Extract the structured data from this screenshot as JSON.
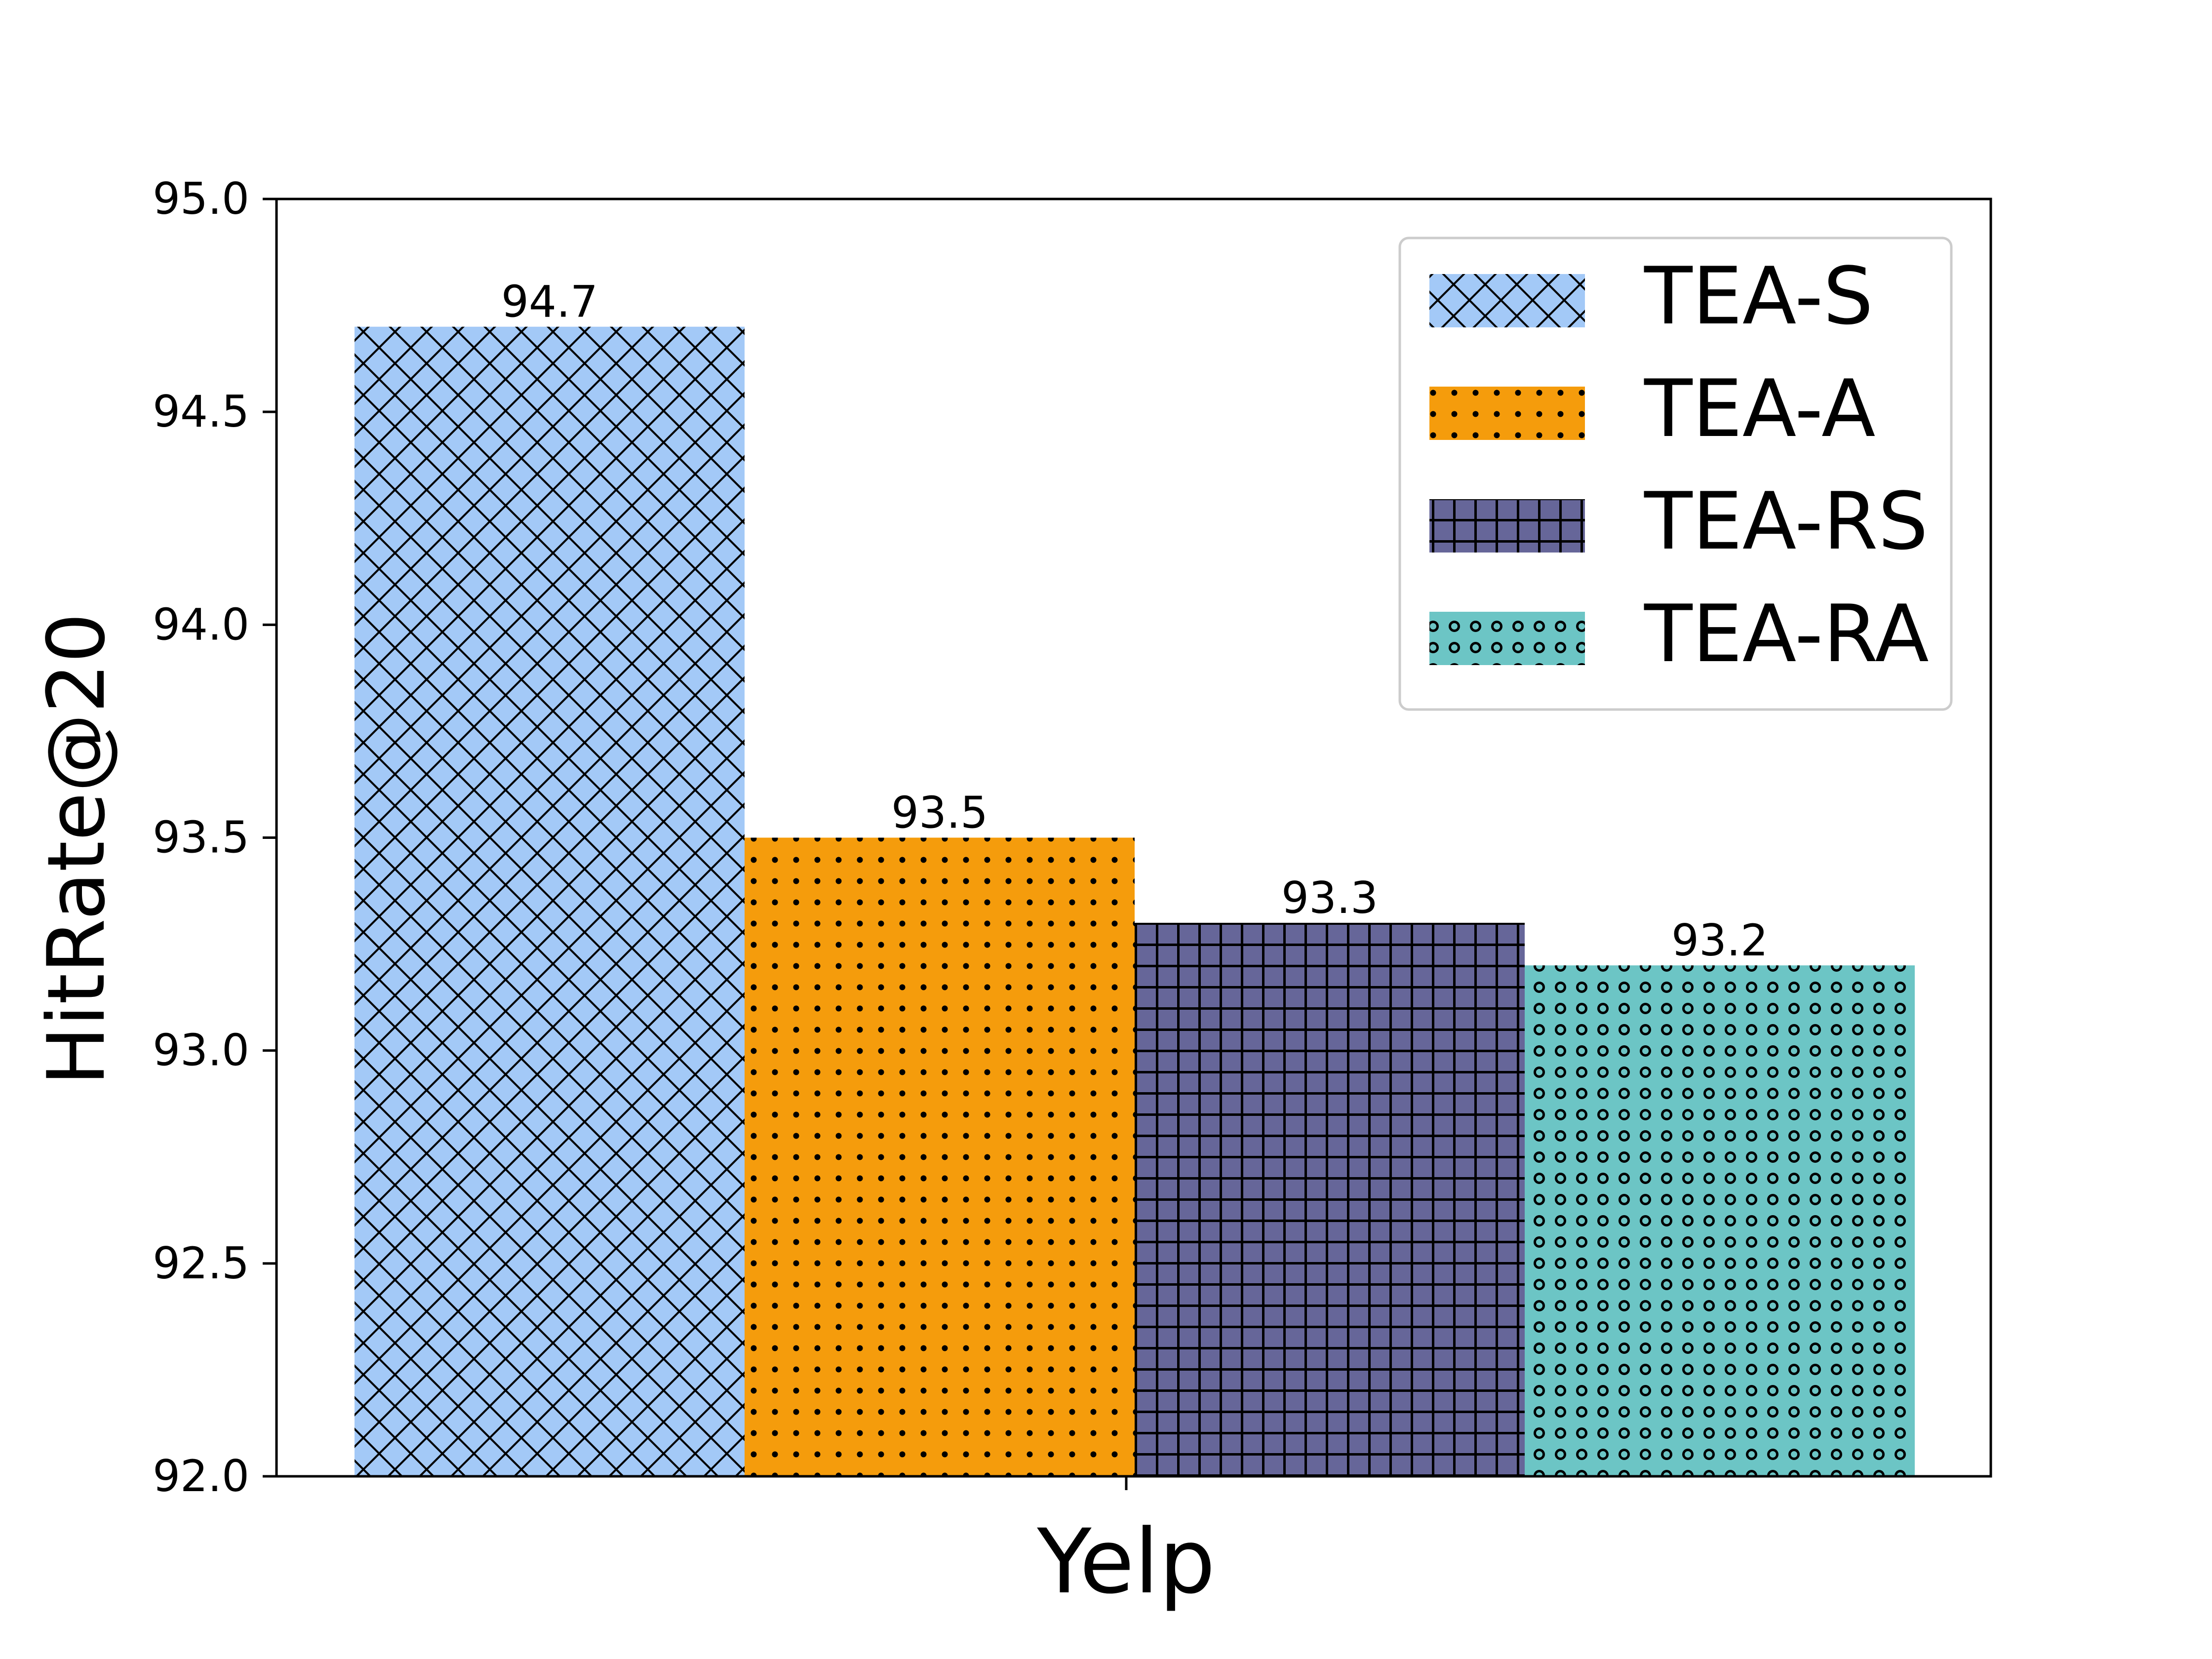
{
  "chart_data": {
    "type": "bar",
    "title": "",
    "xlabel": "",
    "ylabel": "HitRate@20",
    "categories": [
      "Yelp"
    ],
    "ylim": [
      92.0,
      95.0
    ],
    "yticks": [
      "92.0",
      "92.5",
      "93.0",
      "93.5",
      "94.0",
      "94.5",
      "95.0"
    ],
    "grid": false,
    "legend_position": "top-right",
    "series": [
      {
        "name": "TEA-S",
        "values": [
          94.7
        ],
        "value_label": "94.7",
        "color": "#a3c9f7",
        "hatch": "cross-diagonal"
      },
      {
        "name": "TEA-A",
        "values": [
          93.5
        ],
        "value_label": "93.5",
        "color": "#f59c0c",
        "hatch": "dots"
      },
      {
        "name": "TEA-RS",
        "values": [
          93.3
        ],
        "value_label": "93.3",
        "color": "#666699",
        "hatch": "grid"
      },
      {
        "name": "TEA-RA",
        "values": [
          93.2
        ],
        "value_label": "93.2",
        "color": "#6cc5c5",
        "hatch": "rings"
      }
    ]
  }
}
